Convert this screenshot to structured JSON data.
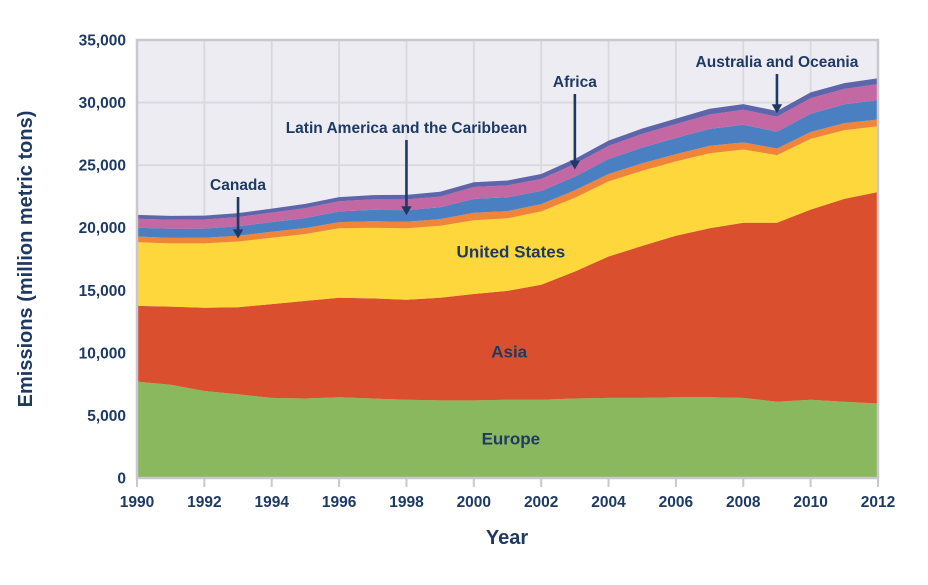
{
  "chart_data": {
    "type": "area",
    "stacked": true,
    "title": "",
    "xlabel": "Year",
    "ylabel": "Emissions (million metric tons)",
    "xlim": [
      1990,
      2012
    ],
    "ylim": [
      0,
      35000
    ],
    "grid": true,
    "x": [
      1990,
      1991,
      1992,
      1993,
      1994,
      1995,
      1996,
      1997,
      1998,
      1999,
      2000,
      2001,
      2002,
      2003,
      2004,
      2005,
      2006,
      2007,
      2008,
      2009,
      2010,
      2011,
      2012
    ],
    "x_ticks": [
      {
        "v": 1990,
        "label": "1990"
      },
      {
        "v": 1992,
        "label": "1992"
      },
      {
        "v": 1994,
        "label": "1994"
      },
      {
        "v": 1996,
        "label": "1996"
      },
      {
        "v": 1998,
        "label": "1998"
      },
      {
        "v": 2000,
        "label": "2000"
      },
      {
        "v": 2002,
        "label": "2002"
      },
      {
        "v": 2004,
        "label": "2004"
      },
      {
        "v": 2006,
        "label": "2006"
      },
      {
        "v": 2008,
        "label": "2008"
      },
      {
        "v": 2010,
        "label": "2010"
      },
      {
        "v": 2012,
        "label": "2012"
      }
    ],
    "y_ticks": [
      {
        "v": 0,
        "label": "0"
      },
      {
        "v": 5000,
        "label": "5,000"
      },
      {
        "v": 10000,
        "label": "10,000"
      },
      {
        "v": 15000,
        "label": "15,000"
      },
      {
        "v": 20000,
        "label": "20,000"
      },
      {
        "v": 25000,
        "label": "25,000"
      },
      {
        "v": 30000,
        "label": "30,000"
      },
      {
        "v": 35000,
        "label": "35,000"
      }
    ],
    "series": [
      {
        "name": "Europe",
        "color": "#8ab85e",
        "values": [
          7700,
          7450,
          6950,
          6700,
          6400,
          6350,
          6450,
          6350,
          6250,
          6200,
          6200,
          6250,
          6250,
          6350,
          6400,
          6400,
          6450,
          6450,
          6400,
          6100,
          6250,
          6100,
          5950
        ]
      },
      {
        "name": "Asia",
        "color": "#da4f2e",
        "values": [
          6050,
          6250,
          6650,
          6950,
          7500,
          7800,
          7950,
          8000,
          8000,
          8200,
          8500,
          8700,
          9200,
          10150,
          11300,
          12150,
          12900,
          13500,
          14000,
          14300,
          15200,
          16200,
          16900
        ]
      },
      {
        "name": "United States",
        "color": "#fdd73c",
        "values": [
          5100,
          5050,
          5150,
          5250,
          5300,
          5350,
          5550,
          5650,
          5700,
          5750,
          5900,
          5800,
          5850,
          5900,
          6000,
          6000,
          5950,
          6000,
          5850,
          5400,
          5650,
          5500,
          5250
        ]
      },
      {
        "name": "Canada",
        "color": "#f08438",
        "values": [
          450,
          440,
          450,
          460,
          470,
          480,
          500,
          520,
          530,
          540,
          600,
          580,
          590,
          590,
          590,
          600,
          580,
          600,
          570,
          530,
          550,
          560,
          550
        ]
      },
      {
        "name": "Latin America and the Caribbean",
        "color": "#4a80c2",
        "values": [
          700,
          720,
          730,
          750,
          780,
          800,
          850,
          900,
          930,
          940,
          1100,
          1100,
          1050,
          1100,
          1200,
          1250,
          1300,
          1350,
          1400,
          1350,
          1450,
          1500,
          1550
        ]
      },
      {
        "name": "Africa",
        "color": "#c468a4",
        "values": [
          720,
          730,
          730,
          740,
          760,
          790,
          810,
          840,
          850,
          860,
          950,
          950,
          950,
          1000,
          1050,
          1100,
          1100,
          1150,
          1200,
          1200,
          1250,
          1230,
          1280
        ]
      },
      {
        "name": "Australia and Oceania",
        "color": "#5f65aa",
        "values": [
          300,
          305,
          310,
          315,
          320,
          330,
          340,
          350,
          365,
          380,
          390,
          395,
          400,
          410,
          420,
          430,
          440,
          450,
          460,
          450,
          460,
          465,
          470
        ]
      }
    ],
    "inline_labels": [
      {
        "text": "United States",
        "year": 2001.1,
        "value": 18100
      },
      {
        "text": "Asia",
        "year": 2001.05,
        "value": 10100
      },
      {
        "text": "Europe",
        "year": 2001.1,
        "value": 3150
      }
    ],
    "annotations": [
      {
        "text": "Canada",
        "target_year": 1993,
        "target_value": 19150
      },
      {
        "text": "Latin America and the Caribbean",
        "target_year": 1998,
        "target_value": 21000
      },
      {
        "text": "Africa",
        "target_year": 2003,
        "target_value": 24650
      },
      {
        "text": "Australia and Oceania",
        "target_year": 2009,
        "target_value": 29150
      }
    ],
    "plot_bg_color": "#eeecf3",
    "gridline_color": "#d9d8db",
    "border_color": "#c9c8cc",
    "text_color": "#1e3a64",
    "legend_position": "none"
  }
}
